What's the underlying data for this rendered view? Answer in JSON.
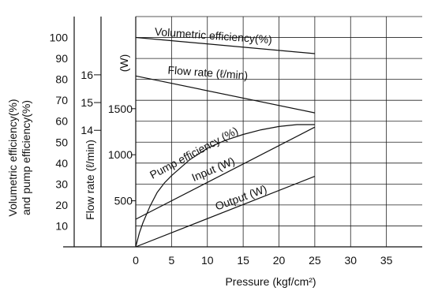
{
  "chart_data": {
    "type": "line",
    "xlabel": "Pressure (kgf/cm²)",
    "x_ticks": [
      0,
      5,
      10,
      15,
      20,
      25,
      30,
      35
    ],
    "xlim": [
      0,
      40
    ],
    "axes": {
      "efficiency": {
        "label_line1": "Volumetric efficiency(%)",
        "label_line2": "and pump efficiency(%)",
        "ticks": [
          10,
          20,
          30,
          40,
          50,
          60,
          70,
          80,
          90,
          100
        ],
        "range": [
          0,
          110
        ]
      },
      "flow": {
        "label": "Flow rate (ℓ/min)",
        "ticks": [
          14,
          15,
          16
        ],
        "range": [
          9.8,
          18.1
        ]
      },
      "power": {
        "label": "(W)",
        "ticks": [
          500,
          1000,
          1500
        ],
        "range": [
          0,
          2500
        ]
      }
    },
    "series": [
      {
        "name": "Volumetric efficiency(%)",
        "axis": "efficiency",
        "x": [
          0,
          25
        ],
        "y": [
          100,
          92.3
        ]
      },
      {
        "name": "Flow rate (ℓ/min)",
        "axis": "flow",
        "x": [
          0,
          25
        ],
        "y": [
          15.96,
          14.63
        ]
      },
      {
        "name": "Pump efficiency (%)",
        "axis": "efficiency",
        "x": [
          0,
          0.5,
          1,
          2,
          3,
          4,
          5,
          7.5,
          10,
          12.5,
          15,
          17.5,
          20,
          22.5,
          25
        ],
        "y": [
          0,
          6.5,
          11.5,
          19.5,
          26,
          30.5,
          34,
          41.5,
          47.1,
          50.9,
          53.7,
          55.9,
          57.5,
          58.4,
          58.4
        ]
      },
      {
        "name": "Input (W)",
        "axis": "power",
        "x": [
          0,
          25
        ],
        "y": [
          300,
          1300
        ]
      },
      {
        "name": "Output (W)",
        "axis": "power",
        "x": [
          0,
          25
        ],
        "y": [
          0,
          765
        ]
      }
    ],
    "grid": true
  }
}
